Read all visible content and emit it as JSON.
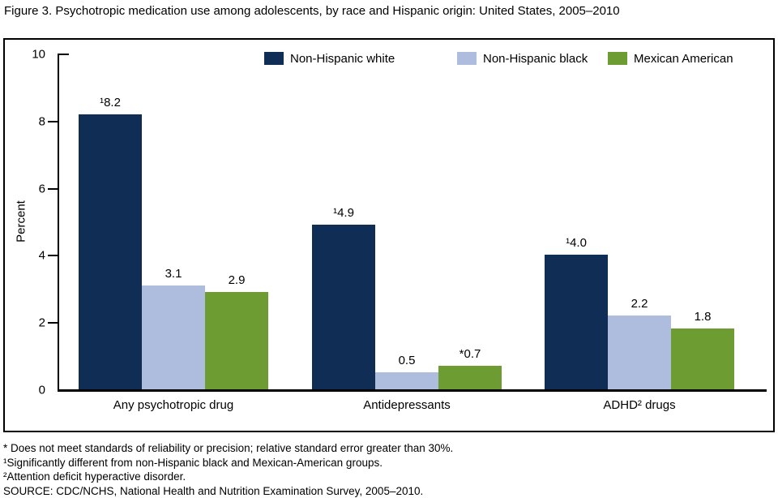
{
  "chart_data": {
    "type": "bar",
    "title": "Figure 3. Psychotropic medication use among adolescents, by race and Hispanic origin: United States, 2005–2010",
    "ylabel": "Percent",
    "ylim": [
      0,
      10
    ],
    "yticks": [
      0,
      2,
      4,
      6,
      8,
      10
    ],
    "grid": false,
    "legend_position": "top-inside",
    "categories": [
      "Any psychotropic drug",
      "Antidepressants",
      "ADHD² drugs"
    ],
    "series": [
      {
        "name": "Non-Hispanic white",
        "color": "#0f2d55",
        "values": [
          8.2,
          4.9,
          4.0
        ],
        "labels": [
          "¹8.2",
          "¹4.9",
          "¹4.0"
        ]
      },
      {
        "name": "Non-Hispanic black",
        "color": "#aebcde",
        "values": [
          3.1,
          0.5,
          2.2
        ],
        "labels": [
          "3.1",
          "0.5",
          "2.2"
        ]
      },
      {
        "name": "Mexican American",
        "color": "#6d9c32",
        "values": [
          2.9,
          0.7,
          1.8
        ],
        "labels": [
          "2.9",
          "*0.7",
          "1.8"
        ]
      }
    ]
  },
  "footnotes": {
    "lines": [
      "* Does not meet standards of reliability or precision; relative standard error greater than 30%.",
      "¹Significantly different from non-Hispanic black and Mexican-American groups.",
      "²Attention deficit hyperactive disorder.",
      "SOURCE: CDC/NCHS, National Health and Nutrition Examination Survey, 2005–2010."
    ]
  }
}
